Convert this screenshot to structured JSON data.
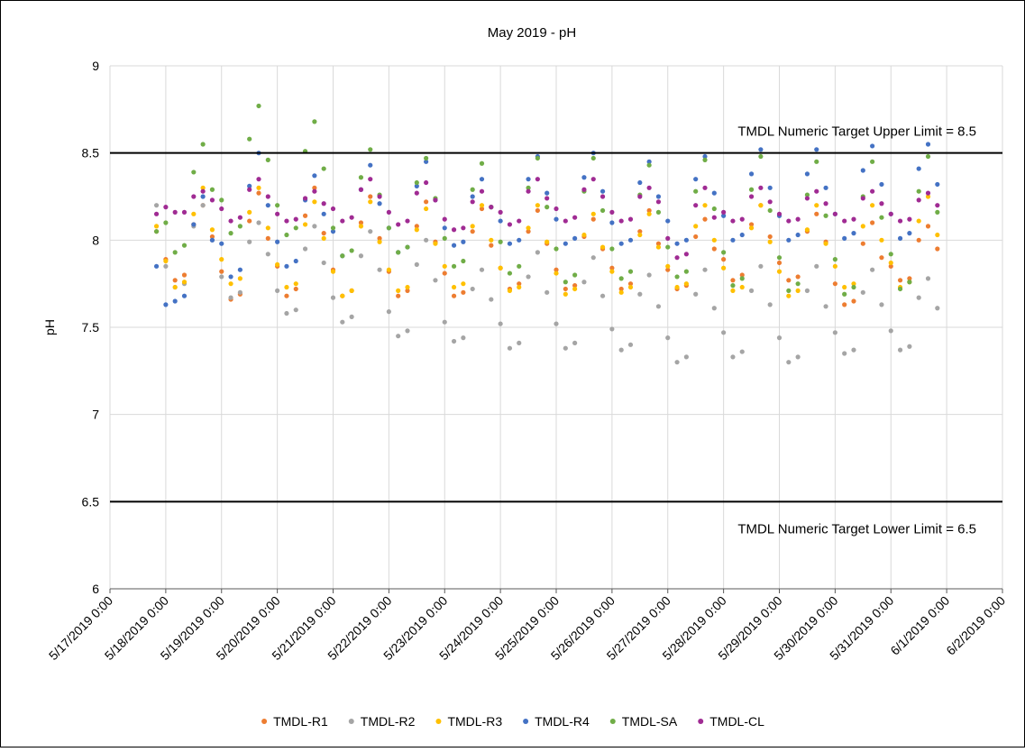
{
  "chart_data": {
    "type": "scatter",
    "title": "May 2019 - pH",
    "y_label": "pH",
    "xlim": [
      "2019-05-17T00:00",
      "2019-06-02T00:00"
    ],
    "xticks": [
      {
        "value": "2019-05-17T00:00",
        "label": "5/17/2019 0:00"
      },
      {
        "value": "2019-05-18T00:00",
        "label": "5/18/2019 0:00"
      },
      {
        "value": "2019-05-19T00:00",
        "label": "5/19/2019 0:00"
      },
      {
        "value": "2019-05-20T00:00",
        "label": "5/20/2019 0:00"
      },
      {
        "value": "2019-05-21T00:00",
        "label": "5/21/2019 0:00"
      },
      {
        "value": "2019-05-22T00:00",
        "label": "5/22/2019 0:00"
      },
      {
        "value": "2019-05-23T00:00",
        "label": "5/23/2019 0:00"
      },
      {
        "value": "2019-05-24T00:00",
        "label": "5/24/2019 0:00"
      },
      {
        "value": "2019-05-25T00:00",
        "label": "5/25/2019 0:00"
      },
      {
        "value": "2019-05-26T00:00",
        "label": "5/26/2019 0:00"
      },
      {
        "value": "2019-05-27T00:00",
        "label": "5/27/2019 0:00"
      },
      {
        "value": "2019-05-28T00:00",
        "label": "5/28/2019 0:00"
      },
      {
        "value": "2019-05-29T00:00",
        "label": "5/29/2019 0:00"
      },
      {
        "value": "2019-05-30T00:00",
        "label": "5/30/2019 0:00"
      },
      {
        "value": "2019-05-31T00:00",
        "label": "5/31/2019 0:00"
      },
      {
        "value": "2019-06-01T00:00",
        "label": "6/1/2019 0:00"
      },
      {
        "value": "2019-06-02T00:00",
        "label": "6/2/2019 0:00"
      }
    ],
    "ylim": [
      6,
      9
    ],
    "yticks": [
      6,
      6.5,
      7,
      7.5,
      8,
      8.5,
      9
    ],
    "grid": true,
    "legend": "bottom",
    "reference_lines": [
      {
        "value": 8.5,
        "label": "TMDL Numeric Target Upper Limit = 8.5"
      },
      {
        "value": 6.5,
        "label": "TMDL Numeric Target Lower Limit = 6.5"
      }
    ],
    "x": [
      "2019-05-17T20:00",
      "2019-05-18T00:00",
      "2019-05-18T04:00",
      "2019-05-18T08:00",
      "2019-05-18T12:00",
      "2019-05-18T16:00",
      "2019-05-18T20:00",
      "2019-05-19T00:00",
      "2019-05-19T04:00",
      "2019-05-19T08:00",
      "2019-05-19T12:00",
      "2019-05-19T16:00",
      "2019-05-19T20:00",
      "2019-05-20T00:00",
      "2019-05-20T04:00",
      "2019-05-20T08:00",
      "2019-05-20T12:00",
      "2019-05-20T16:00",
      "2019-05-20T20:00",
      "2019-05-21T00:00",
      "2019-05-21T04:00",
      "2019-05-21T08:00",
      "2019-05-21T12:00",
      "2019-05-21T16:00",
      "2019-05-21T20:00",
      "2019-05-22T00:00",
      "2019-05-22T04:00",
      "2019-05-22T08:00",
      "2019-05-22T12:00",
      "2019-05-22T16:00",
      "2019-05-22T20:00",
      "2019-05-23T00:00",
      "2019-05-23T04:00",
      "2019-05-23T08:00",
      "2019-05-23T12:00",
      "2019-05-23T16:00",
      "2019-05-23T20:00",
      "2019-05-24T00:00",
      "2019-05-24T04:00",
      "2019-05-24T08:00",
      "2019-05-24T12:00",
      "2019-05-24T16:00",
      "2019-05-24T20:00",
      "2019-05-25T00:00",
      "2019-05-25T04:00",
      "2019-05-25T08:00",
      "2019-05-25T12:00",
      "2019-05-25T16:00",
      "2019-05-25T20:00",
      "2019-05-26T00:00",
      "2019-05-26T04:00",
      "2019-05-26T08:00",
      "2019-05-26T12:00",
      "2019-05-26T16:00",
      "2019-05-26T20:00",
      "2019-05-27T00:00",
      "2019-05-27T04:00",
      "2019-05-27T08:00",
      "2019-05-27T12:00",
      "2019-05-27T16:00",
      "2019-05-27T20:00",
      "2019-05-28T00:00",
      "2019-05-28T04:00",
      "2019-05-28T08:00",
      "2019-05-28T12:00",
      "2019-05-28T16:00",
      "2019-05-28T20:00",
      "2019-05-29T00:00",
      "2019-05-29T04:00",
      "2019-05-29T08:00",
      "2019-05-29T12:00",
      "2019-05-29T16:00",
      "2019-05-29T20:00",
      "2019-05-30T00:00",
      "2019-05-30T04:00",
      "2019-05-30T08:00",
      "2019-05-30T12:00",
      "2019-05-30T16:00",
      "2019-05-30T20:00",
      "2019-05-31T00:00",
      "2019-05-31T04:00",
      "2019-05-31T08:00",
      "2019-05-31T12:00",
      "2019-05-31T16:00",
      "2019-05-31T20:00"
    ],
    "series": [
      {
        "name": "TMDL-R1",
        "color": "#ED7D31",
        "values": [
          8.05,
          7.89,
          7.77,
          7.8,
          8.09,
          8.2,
          8.02,
          7.82,
          7.66,
          7.69,
          8.11,
          8.27,
          8.01,
          7.85,
          7.68,
          7.72,
          8.14,
          8.3,
          8.04,
          7.83,
          7.68,
          7.71,
          8.1,
          8.25,
          8.01,
          7.82,
          7.68,
          7.71,
          8.08,
          8.22,
          7.99,
          7.81,
          7.68,
          7.7,
          8.05,
          8.18,
          7.97,
          7.84,
          7.72,
          7.75,
          8.05,
          8.17,
          7.98,
          7.83,
          7.72,
          7.74,
          8.02,
          8.12,
          7.95,
          7.84,
          7.72,
          7.75,
          8.05,
          8.17,
          7.98,
          7.83,
          7.72,
          7.74,
          8.02,
          8.12,
          7.95,
          7.89,
          7.77,
          7.8,
          8.09,
          8.2,
          8.02,
          7.87,
          7.77,
          7.79,
          8.05,
          8.15,
          7.99,
          7.75,
          7.63,
          7.65,
          7.98,
          8.1,
          7.9,
          7.85,
          7.77,
          7.78,
          8.0,
          8.08,
          7.95
        ]
      },
      {
        "name": "TMDL-R2",
        "color": "#A5A5A5",
        "values": [
          8.2,
          7.85,
          7.73,
          7.75,
          8.08,
          8.2,
          8.0,
          7.79,
          7.67,
          7.7,
          7.99,
          8.1,
          7.92,
          7.71,
          7.58,
          7.6,
          7.95,
          8.08,
          7.87,
          7.67,
          7.53,
          7.56,
          7.91,
          8.05,
          7.83,
          7.59,
          7.45,
          7.48,
          7.86,
          8.0,
          7.77,
          7.53,
          7.42,
          7.44,
          7.72,
          7.83,
          7.66,
          7.52,
          7.38,
          7.41,
          7.79,
          7.93,
          7.7,
          7.52,
          7.38,
          7.41,
          7.76,
          7.9,
          7.68,
          7.49,
          7.37,
          7.4,
          7.69,
          7.8,
          7.62,
          7.44,
          7.3,
          7.33,
          7.69,
          7.83,
          7.61,
          7.47,
          7.33,
          7.36,
          7.71,
          7.85,
          7.63,
          7.44,
          7.3,
          7.33,
          7.71,
          7.85,
          7.62,
          7.47,
          7.35,
          7.37,
          7.7,
          7.83,
          7.63,
          7.48,
          7.37,
          7.39,
          7.67,
          7.78,
          7.61
        ]
      },
      {
        "name": "TMDL-R3",
        "color": "#FFC000",
        "values": [
          8.08,
          7.88,
          7.73,
          7.76,
          8.15,
          8.3,
          8.06,
          7.89,
          7.75,
          7.78,
          8.16,
          8.3,
          8.07,
          7.86,
          7.73,
          7.75,
          8.09,
          8.22,
          8.01,
          7.82,
          7.68,
          7.71,
          8.08,
          8.22,
          7.99,
          7.83,
          7.71,
          7.73,
          8.06,
          8.18,
          7.98,
          7.85,
          7.73,
          7.75,
          8.08,
          8.2,
          8.0,
          7.84,
          7.71,
          7.73,
          8.07,
          8.2,
          7.99,
          7.81,
          7.69,
          7.72,
          8.03,
          8.15,
          7.96,
          7.82,
          7.7,
          7.73,
          8.03,
          8.15,
          7.96,
          7.85,
          7.73,
          7.75,
          8.08,
          8.2,
          8.0,
          7.84,
          7.71,
          7.73,
          8.07,
          8.2,
          7.99,
          7.82,
          7.68,
          7.71,
          8.06,
          8.2,
          7.98,
          7.85,
          7.73,
          7.75,
          8.08,
          8.2,
          8.0,
          7.87,
          7.73,
          7.76,
          8.11,
          8.25,
          8.03
        ]
      },
      {
        "name": "TMDL-R4",
        "color": "#4472C4",
        "values": [
          7.85,
          7.63,
          7.65,
          7.68,
          8.09,
          8.25,
          8.0,
          7.98,
          7.79,
          7.83,
          8.31,
          8.5,
          8.2,
          7.99,
          7.85,
          7.88,
          8.23,
          8.37,
          8.15,
          8.05,
          7.91,
          null,
          8.29,
          8.43,
          8.21,
          8.07,
          7.93,
          7.96,
          8.31,
          8.45,
          8.23,
          8.07,
          7.97,
          7.99,
          8.25,
          8.35,
          8.19,
          8.11,
          7.98,
          8.0,
          8.35,
          8.48,
          8.27,
          8.12,
          7.98,
          8.01,
          8.36,
          8.5,
          8.28,
          8.1,
          7.98,
          8.0,
          8.33,
          8.45,
          8.25,
          8.11,
          7.98,
          8.0,
          8.35,
          8.48,
          8.27,
          8.14,
          8.0,
          8.03,
          8.38,
          8.52,
          8.3,
          8.14,
          8.0,
          8.03,
          8.38,
          8.52,
          8.3,
          8.15,
          8.01,
          8.04,
          8.4,
          8.54,
          8.32,
          8.15,
          8.01,
          8.04,
          8.41,
          8.55,
          8.32
        ]
      },
      {
        "name": "TMDL-SA",
        "color": "#70AD47",
        "values": [
          8.05,
          8.1,
          7.93,
          7.97,
          8.39,
          8.55,
          8.29,
          8.23,
          8.04,
          8.08,
          8.58,
          8.77,
          8.46,
          8.2,
          8.03,
          8.07,
          8.51,
          8.68,
          8.41,
          8.07,
          7.91,
          7.94,
          8.36,
          8.52,
          8.26,
          8.07,
          7.93,
          7.96,
          8.33,
          8.47,
          8.24,
          8.01,
          7.85,
          7.88,
          8.29,
          8.44,
          8.19,
          7.99,
          7.81,
          7.85,
          8.3,
          8.47,
          8.19,
          7.95,
          7.76,
          7.8,
          8.28,
          8.47,
          8.17,
          7.95,
          7.78,
          7.82,
          8.26,
          8.43,
          8.16,
          7.96,
          7.79,
          7.82,
          8.28,
          8.46,
          8.18,
          7.93,
          7.74,
          7.78,
          8.29,
          8.48,
          8.17,
          7.9,
          7.71,
          7.75,
          8.26,
          8.45,
          8.14,
          7.89,
          7.69,
          7.73,
          8.25,
          8.45,
          8.13,
          7.92,
          7.72,
          7.76,
          8.28,
          8.48,
          8.16
        ]
      },
      {
        "name": "TMDL-CL",
        "color": "#A02B93",
        "values": [
          8.15,
          8.19,
          8.16,
          8.16,
          8.25,
          8.28,
          8.23,
          8.18,
          8.11,
          8.13,
          8.29,
          8.35,
          8.25,
          8.15,
          8.11,
          8.12,
          8.24,
          8.28,
          8.21,
          8.18,
          8.11,
          8.13,
          8.29,
          8.35,
          8.25,
          8.16,
          8.09,
          8.11,
          8.27,
          8.33,
          8.23,
          8.12,
          8.06,
          8.07,
          8.22,
          8.28,
          8.19,
          8.16,
          8.09,
          8.11,
          8.28,
          8.35,
          8.24,
          8.18,
          8.11,
          8.13,
          8.29,
          8.35,
          8.25,
          8.16,
          8.11,
          8.12,
          8.25,
          8.3,
          8.22,
          8.01,
          7.9,
          7.92,
          8.2,
          8.3,
          8.13,
          8.16,
          8.11,
          8.12,
          8.25,
          8.3,
          8.22,
          8.15,
          8.11,
          8.12,
          8.24,
          8.28,
          8.21,
          8.15,
          8.11,
          8.12,
          8.24,
          8.28,
          8.21,
          8.15,
          8.11,
          8.12,
          8.23,
          8.27,
          8.2
        ]
      }
    ]
  }
}
